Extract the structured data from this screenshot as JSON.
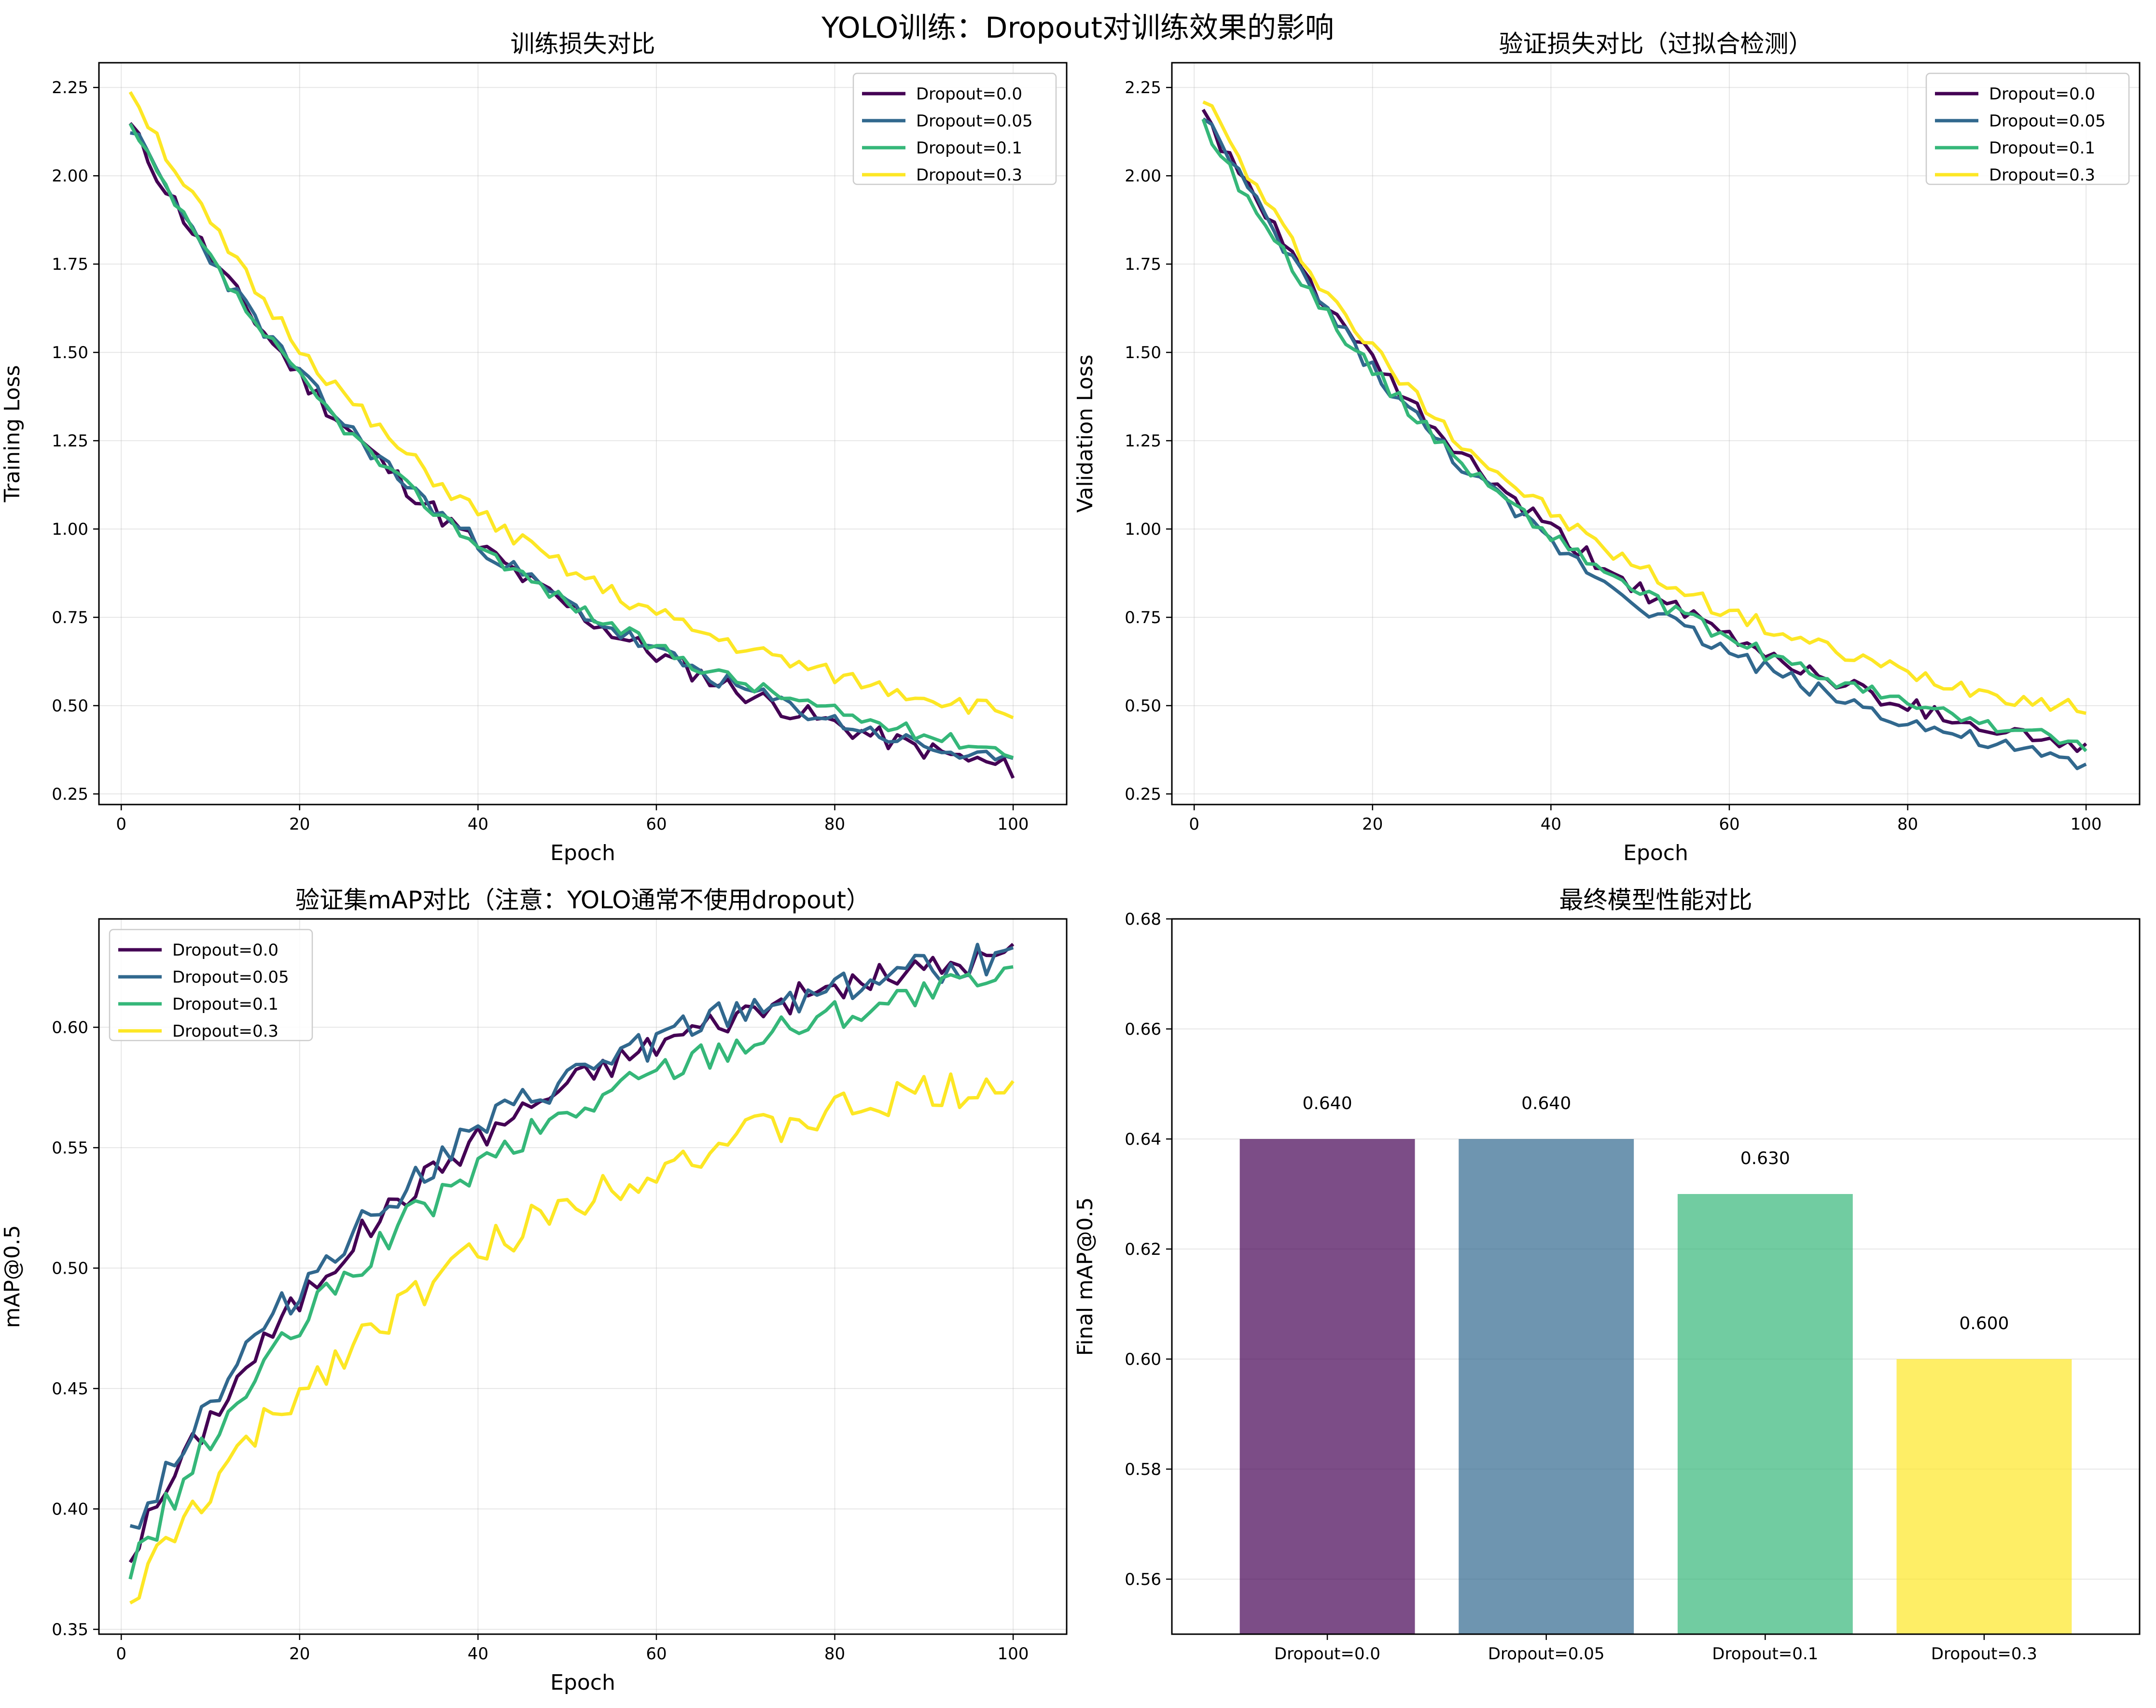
{
  "figure_title": "YOLO训练：Dropout对训练效果的影响",
  "colors": {
    "Dropout=0.0": "#440154",
    "Dropout=0.05": "#31688e",
    "Dropout=0.1": "#35b779",
    "Dropout=0.3": "#fde725"
  },
  "chart_data": [
    {
      "id": "train-loss",
      "type": "line",
      "title": "训练损失对比",
      "xlabel": "Epoch",
      "ylabel": "Training Loss",
      "xlim": [
        -2.5,
        106
      ],
      "ylim": [
        0.22,
        2.32
      ],
      "xticks": [
        0,
        20,
        40,
        60,
        80,
        100
      ],
      "yticks": [
        0.25,
        0.5,
        0.75,
        1.0,
        1.25,
        1.5,
        1.75,
        2.0,
        2.25
      ],
      "ytick_decimals": 2,
      "grid": true,
      "legend": "upper right",
      "series": [
        {
          "name": "Dropout=0.0",
          "start": 2.14,
          "end": 0.32,
          "tau": 45,
          "noise": 0.03,
          "seed": 11
        },
        {
          "name": "Dropout=0.05",
          "start": 2.14,
          "end": 0.33,
          "tau": 45,
          "noise": 0.025,
          "seed": 23
        },
        {
          "name": "Dropout=0.1",
          "start": 2.14,
          "end": 0.37,
          "tau": 42,
          "noise": 0.02,
          "seed": 37
        },
        {
          "name": "Dropout=0.3",
          "start": 2.25,
          "end": 0.48,
          "tau": 40,
          "noise": 0.025,
          "seed": 51
        }
      ]
    },
    {
      "id": "val-loss",
      "type": "line",
      "title": "验证损失对比（过拟合检测）",
      "xlabel": "Epoch",
      "ylabel": "Validation Loss",
      "xlim": [
        -2.5,
        106
      ],
      "ylim": [
        0.22,
        2.32
      ],
      "xticks": [
        0,
        20,
        40,
        60,
        80,
        100
      ],
      "yticks": [
        0.25,
        0.5,
        0.75,
        1.0,
        1.25,
        1.5,
        1.75,
        2.0,
        2.25
      ],
      "ytick_decimals": 2,
      "grid": true,
      "legend": "upper right",
      "series": [
        {
          "name": "Dropout=0.0",
          "start": 2.18,
          "end": 0.38,
          "tau": 44,
          "noise": 0.025,
          "seed": 61
        },
        {
          "name": "Dropout=0.05",
          "start": 2.18,
          "end": 0.33,
          "tau": 44,
          "noise": 0.025,
          "seed": 73
        },
        {
          "name": "Dropout=0.1",
          "start": 2.15,
          "end": 0.39,
          "tau": 43,
          "noise": 0.02,
          "seed": 89
        },
        {
          "name": "Dropout=0.3",
          "start": 2.23,
          "end": 0.49,
          "tau": 40,
          "noise": 0.025,
          "seed": 97
        }
      ]
    },
    {
      "id": "val-map",
      "type": "line",
      "title": "验证集mAP对比（注意：YOLO通常不使用dropout）",
      "xlabel": "Epoch",
      "ylabel": "mAP@0.5",
      "xlim": [
        -2.5,
        106
      ],
      "ylim": [
        0.348,
        0.645
      ],
      "xticks": [
        0,
        20,
        40,
        60,
        80,
        100
      ],
      "yticks": [
        0.35,
        0.4,
        0.45,
        0.5,
        0.55,
        0.6
      ],
      "ytick_decimals": 2,
      "grid": true,
      "legend": "upper left",
      "series": [
        {
          "name": "Dropout=0.0",
          "start": 0.381,
          "end": 0.63,
          "tau": 38,
          "noise": 0.006,
          "seed": 101
        },
        {
          "name": "Dropout=0.05",
          "start": 0.39,
          "end": 0.63,
          "tau": 38,
          "noise": 0.007,
          "seed": 113
        },
        {
          "name": "Dropout=0.1",
          "start": 0.374,
          "end": 0.62,
          "tau": 40,
          "noise": 0.007,
          "seed": 127
        },
        {
          "name": "Dropout=0.3",
          "start": 0.362,
          "end": 0.578,
          "tau": 42,
          "noise": 0.008,
          "seed": 131
        }
      ]
    },
    {
      "id": "final-map",
      "type": "bar",
      "title": "最终模型性能对比",
      "xlabel": "",
      "ylabel": "Final mAP@0.5",
      "ylim": [
        0.55,
        0.68
      ],
      "yticks": [
        0.56,
        0.58,
        0.6,
        0.62,
        0.64,
        0.66,
        0.68
      ],
      "ytick_decimals": 2,
      "grid": true,
      "categories": [
        "Dropout=0.0",
        "Dropout=0.05",
        "Dropout=0.1",
        "Dropout=0.3"
      ],
      "values": [
        0.64,
        0.64,
        0.63,
        0.6
      ],
      "value_labels": [
        "0.640",
        "0.640",
        "0.630",
        "0.600"
      ],
      "bar_opacity": 0.7
    }
  ]
}
